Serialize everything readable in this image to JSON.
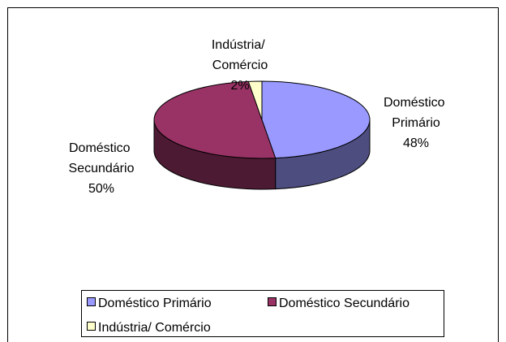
{
  "chart_data": {
    "type": "pie3d",
    "categories": [
      "Doméstico Primário",
      "Doméstico Secundário",
      "Indústria/ Comércio"
    ],
    "values": [
      48,
      50,
      2
    ],
    "value_labels": [
      "48%",
      "50%",
      "2%"
    ],
    "colors": [
      "#9999ff",
      "#993366",
      "#ffffcc"
    ],
    "legend": "bottom"
  }
}
